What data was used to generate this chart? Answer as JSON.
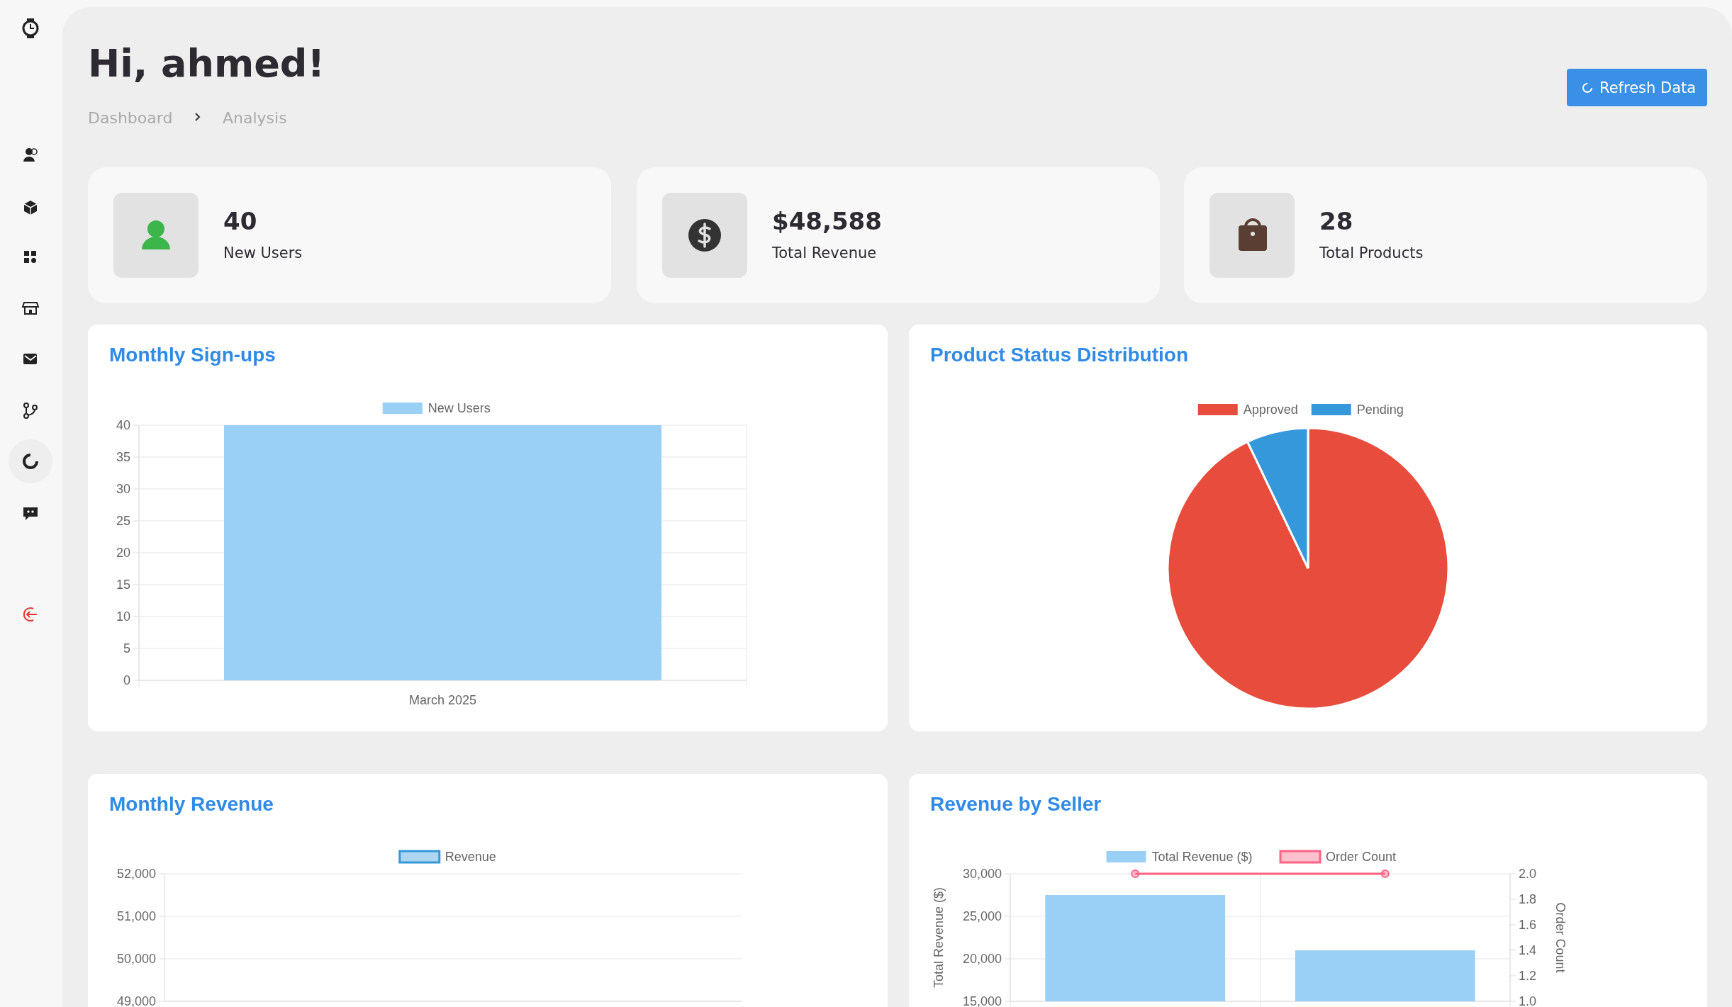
{
  "chart_data": [
    {
      "type": "other",
      "title": "Hi, ahmed!",
      "annotations": [
        "Dashboard",
        "Analysis",
        "Refresh Data",
        "40",
        "New Users",
        "$48,588",
        "Total Revenue",
        "28",
        "Total Products"
      ]
    },
    {
      "type": "bar",
      "title": "Monthly Sign-ups",
      "categories": [
        "March 2025"
      ],
      "series": [
        {
          "name": "New Users",
          "color": "#9ad0f5",
          "values": [
            40
          ]
        }
      ],
      "ylim": [
        0,
        40
      ],
      "yticks": [
        0,
        5,
        10,
        15,
        20,
        25,
        30,
        35,
        40
      ],
      "grid": true,
      "legend": "top"
    },
    {
      "type": "pie",
      "title": "Product Status Distribution",
      "categories": [
        "Approved",
        "Pending"
      ],
      "values": [
        92.9,
        7.1
      ],
      "colors": [
        "#e74c3c",
        "#3498db"
      ],
      "legend": "top"
    },
    {
      "type": "line",
      "title": "Monthly Revenue",
      "series": [
        {
          "name": "Revenue",
          "color": "#3498db"
        }
      ],
      "ylim": [
        49000,
        52000
      ],
      "yticks": [
        {
          "value": 49000,
          "label": "49,000"
        },
        {
          "value": 50000,
          "label": "50,000"
        },
        {
          "value": 51000,
          "label": "51,000"
        },
        {
          "value": 52000,
          "label": "52,000"
        }
      ],
      "grid": "y",
      "legend": "top"
    },
    {
      "type": "bar",
      "title": "Revenue by Seller",
      "categories": [
        null,
        null
      ],
      "ylabel": "Total Revenue ($)",
      "y2label": "Order Count",
      "series": [
        {
          "name": "Total Revenue ($)",
          "type": "bar",
          "color": "#9ad0f5",
          "values": [
            27500,
            21000
          ]
        },
        {
          "name": "Order Count",
          "type": "line",
          "axis": "y2",
          "color": "#ff6384",
          "values": [
            2,
            2
          ]
        }
      ],
      "ylim": [
        15000,
        30000
      ],
      "yticks": [
        {
          "value": 15000,
          "label": "15,000"
        },
        {
          "value": 20000,
          "label": "20,000"
        },
        {
          "value": 25000,
          "label": "25,000"
        },
        {
          "value": 30000,
          "label": "30,000"
        }
      ],
      "y2lim": [
        1,
        2
      ],
      "y2ticks": [
        {
          "value": 1,
          "label": "1.0"
        },
        {
          "value": 1.2,
          "label": "1.2"
        },
        {
          "value": 1.4,
          "label": "1.4"
        },
        {
          "value": 1.6,
          "label": "1.6"
        },
        {
          "value": 1.8,
          "label": "1.8"
        },
        {
          "value": 2,
          "label": "2.0"
        }
      ],
      "grid": true,
      "legend": "top",
      "marker": "circle"
    }
  ]
}
